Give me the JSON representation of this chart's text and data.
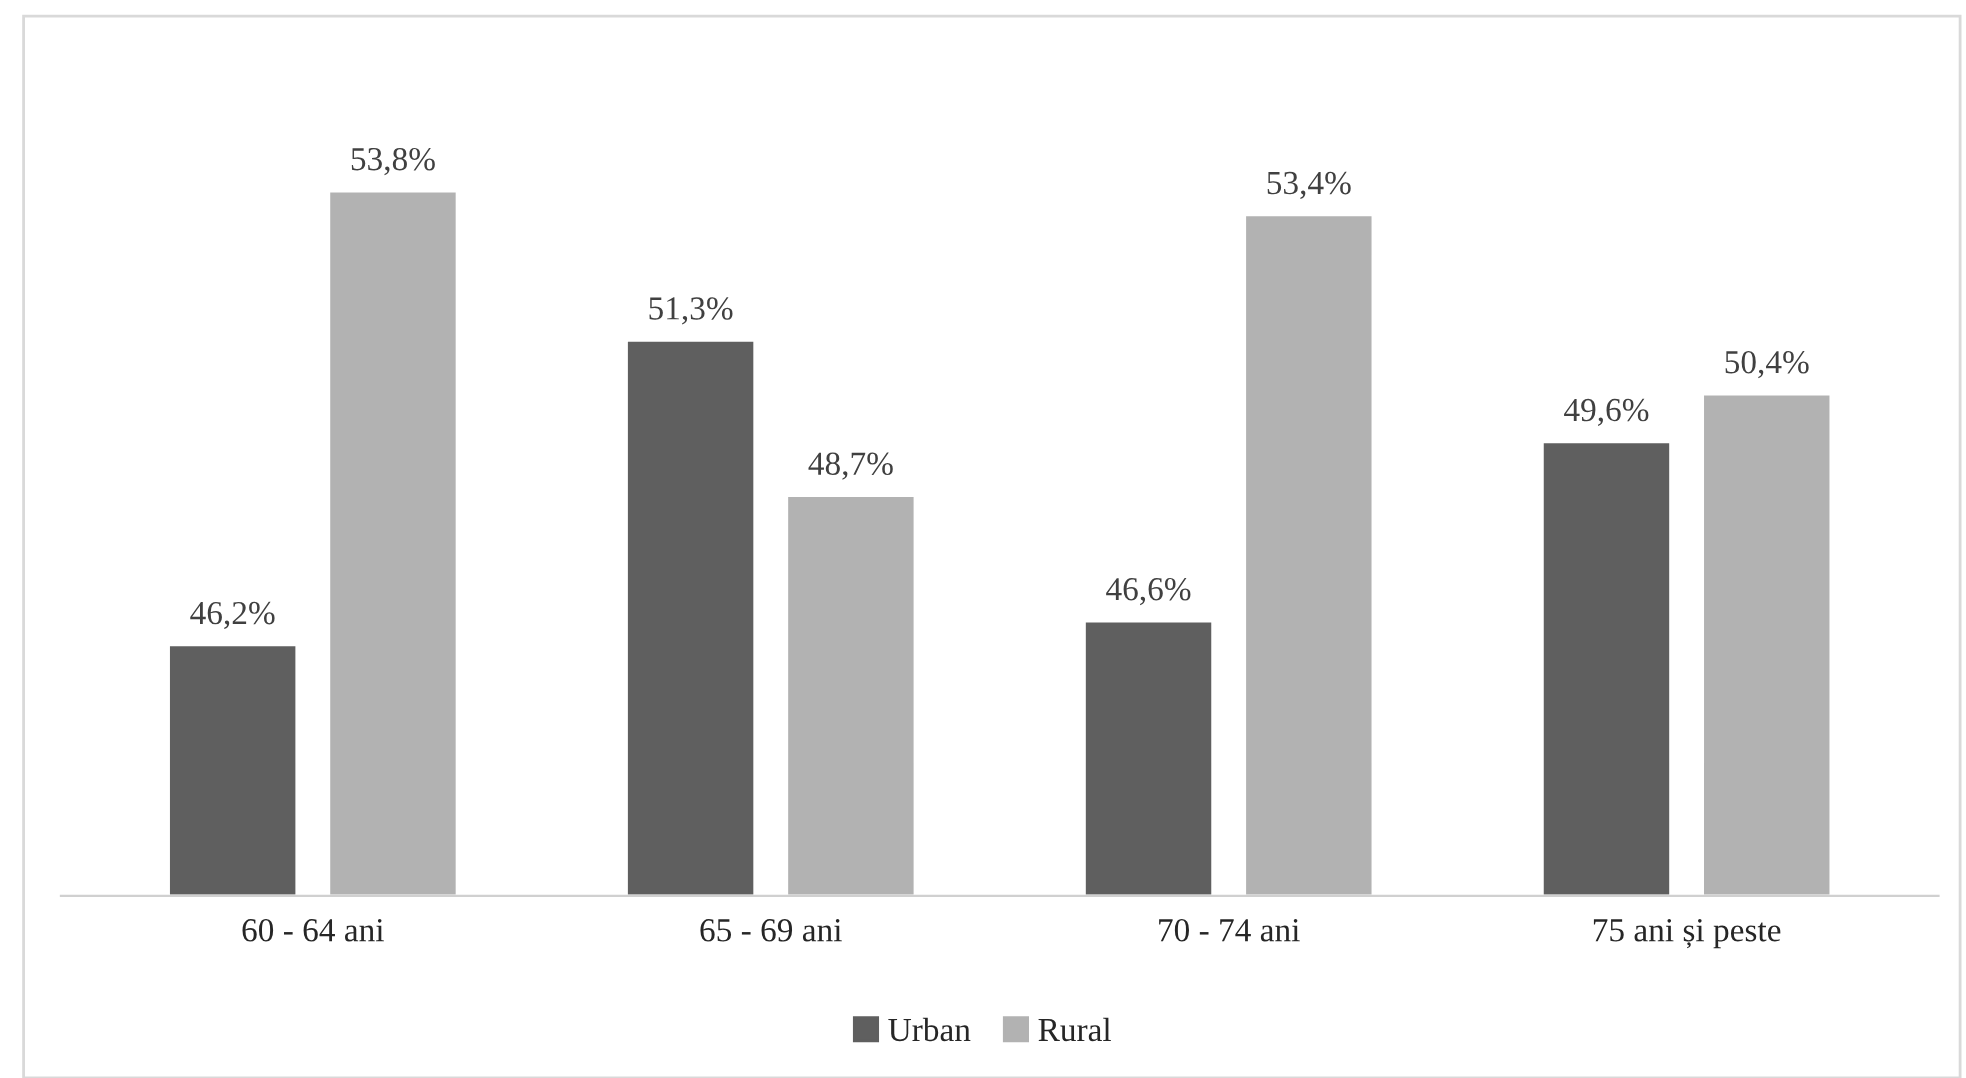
{
  "chart_data": {
    "type": "bar",
    "categories": [
      "60 - 64 ani",
      "65 - 69 ani",
      "70 - 74 ani",
      "75 ani și peste"
    ],
    "series": [
      {
        "name": "Urban",
        "color": "#5f5f5f",
        "values": [
          46.2,
          51.3,
          46.6,
          49.6
        ],
        "value_labels": [
          "46,2%",
          "51,3%",
          "46,6%",
          "49,6%"
        ]
      },
      {
        "name": "Rural",
        "color": "#b2b2b2",
        "values": [
          53.8,
          48.7,
          53.4,
          50.4
        ],
        "value_labels": [
          "53,8%",
          "48,7%",
          "53,4%",
          "50,4%"
        ]
      }
    ],
    "ylim": [
      42,
      56.8
    ],
    "tick_labels": "x",
    "grid": false,
    "legend": "bottom"
  }
}
